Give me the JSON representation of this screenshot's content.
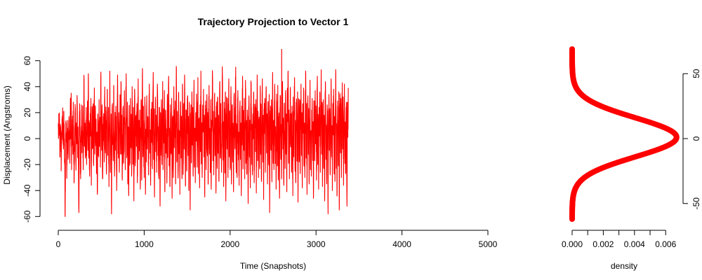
{
  "chart_data": [
    {
      "type": "line",
      "title": "Trajectory Projection to Vector 1",
      "xlabel": "Time (Snapshots)",
      "ylabel": "Displacement (Angstroms)",
      "xlim": [
        0,
        5000
      ],
      "ylim": [
        -62,
        69
      ],
      "x_ticks": [
        0,
        1000,
        2000,
        3000,
        4000,
        5000
      ],
      "y_ticks": [
        -60,
        -40,
        -20,
        0,
        20,
        40,
        60
      ],
      "color": "#ff0000",
      "grid": false,
      "series": [
        {
          "x_start": 0,
          "x_step": 5,
          "values": [
            9,
            2,
            15,
            3,
            -14,
            11,
            -2,
            -18,
            6,
            3,
            18,
            5,
            -8,
            21,
            -6,
            -20,
            -60,
            4,
            12,
            -3,
            -22,
            14,
            8,
            -16,
            0,
            17,
            2,
            -19,
            23,
            10,
            35,
            -24,
            1,
            13,
            -10,
            28,
            -8,
            -33,
            -2,
            21,
            6,
            -18,
            12,
            -4,
            30,
            -12,
            9,
            -22,
            -57,
            14,
            19,
            -3,
            -31,
            8,
            26,
            -11,
            2,
            17,
            -24,
            4,
            46,
            -6,
            12,
            -15,
            1,
            24,
            -20,
            3,
            29,
            -9,
            50,
            -15,
            7,
            -29,
            11,
            2,
            31,
            -36,
            -1,
            18,
            -7,
            25,
            -18,
            4,
            39,
            -12,
            22,
            -2,
            15,
            -27,
            5,
            -43,
            19,
            2,
            -14,
            30,
            -6,
            11,
            -22,
            48,
            13,
            -9,
            26,
            -31,
            -4,
            17,
            2,
            -18,
            33,
            6,
            -11,
            21,
            -25,
            8,
            38,
            -13,
            -2,
            24,
            -37,
            10,
            52,
            -20,
            3,
            19,
            -58,
            14,
            27,
            -4,
            -17,
            41,
            2,
            -29,
            15,
            -9,
            25,
            -1,
            -40,
            12,
            49,
            7,
            -15,
            20,
            -26,
            6,
            31,
            -12,
            44,
            -8,
            18,
            -32,
            3,
            25,
            -19,
            11,
            37,
            -5,
            -24,
            16,
            50,
            2,
            -13,
            28,
            -35,
            9,
            -44,
            22,
            4,
            -18,
            31,
            -7,
            13,
            -27,
            40,
            1,
            -15,
            24,
            -48,
            10,
            35,
            -21,
            6,
            18,
            -6,
            27,
            -34,
            3,
            46,
            -16,
            14,
            -9,
            22,
            -39,
            8,
            30,
            -25,
            2,
            54,
            -14,
            19,
            -5,
            -30,
            12,
            26,
            -43,
            7,
            -18,
            33,
            -8,
            17,
            1,
            -28,
            21,
            42,
            -11,
            5,
            -36,
            15,
            -3,
            28,
            -20,
            10,
            51,
            -16,
            23,
            -45,
            4,
            32,
            -9,
            18,
            -26,
            9,
            39,
            -13,
            2,
            -31,
            24,
            13,
            -52,
            20,
            -6,
            30,
            -17,
            7,
            44,
            -24,
            15,
            -2,
            37,
            -41,
            11,
            22,
            -10,
            3,
            -29,
            34,
            -14,
            19,
            48,
            -21,
            8,
            -37,
            26,
            5,
            -12,
            31,
            -46,
            16,
            2,
            -23,
            40,
            -7,
            14,
            29,
            -33,
            10,
            53,
            -18,
            21,
            -4,
            -27,
            35,
            -11,
            6,
            -43,
            18,
            25,
            -15,
            12,
            -31,
            42,
            3,
            -20,
            27,
            -8,
            49,
            15,
            -36,
            9,
            22,
            -25,
            4,
            33,
            -13,
            17,
            -40,
            28,
            7,
            -55,
            19,
            11,
            -17,
            36,
            -5,
            24,
            -29,
            13,
            45,
            -22,
            8,
            -34,
            20,
            -2,
            31,
            -16,
            10,
            47,
            -27,
            15,
            3,
            -38,
            26,
            -10,
            52,
            -19,
            12,
            -30,
            22,
            5,
            38,
            -14,
            18,
            -45,
            9,
            29,
            -24,
            6,
            34,
            -8,
            17,
            -35,
            23,
            41,
            -12,
            2,
            -20,
            30,
            -39,
            14,
            10,
            49,
            -17,
            21,
            -28,
            7,
            35,
            -6,
            16,
            -42,
            25,
            12,
            -23,
            32,
            -9,
            18,
            -33,
            4,
            44,
            -15,
            27,
            -5,
            -26,
            20,
            50,
            -11,
            13,
            -37,
            28,
            6,
            -19,
            36,
            -48,
            15,
            22,
            -8,
            31,
            -30,
            9,
            46,
            -14,
            19,
            -24,
            3,
            40,
            -35,
            11,
            26,
            -18,
            8,
            -41,
            33,
            14,
            -7,
            24,
            55,
            -21,
            10,
            -29,
            18,
            37,
            -12,
            5,
            -36,
            21,
            29,
            -16,
            12,
            -44,
            25,
            2,
            48,
            -23,
            16,
            -9,
            31,
            -31,
            7,
            39,
            -19,
            14,
            -27,
            22,
            9,
            -50,
            17,
            33,
            -13,
            6,
            -38,
            27,
            43,
            -20,
            11,
            -25,
            19,
            5,
            35,
            -34,
            13,
            24,
            -10,
            30,
            -42,
            8,
            49,
            -17,
            21,
            -30,
            15,
            2,
            -22,
            38,
            -7,
            26,
            -33,
            10,
            46,
            -15,
            18,
            -47,
            23,
            4,
            31,
            -26,
            12,
            40,
            -11,
            19,
            -35,
            28,
            7,
            -20,
            34,
            -57,
            16,
            25,
            -9,
            30,
            -29,
            9,
            51,
            -18,
            14,
            -24,
            21,
            37,
            -13,
            3,
            -39,
            26,
            12,
            -21,
            41,
            -32,
            17,
            8,
            -46,
            24,
            33,
            -16,
            11,
            -28,
            20,
            44,
            -8,
            15,
            -36,
            27,
            6,
            -23,
            35,
            -12,
            19,
            -41,
            29,
            13,
            52,
            -19,
            22,
            -31,
            10,
            38,
            -5,
            17,
            -26,
            25,
            2,
            -44,
            32,
            -14,
            21,
            47,
            -22,
            9,
            -34,
            28,
            16,
            -10,
            36,
            -49,
            14,
            24,
            -18,
            30,
            -27,
            8,
            42,
            -13,
            20,
            -38,
            26,
            5,
            39,
            -21,
            12,
            -30,
            18,
            50,
            -15,
            27,
            -43,
            11,
            33,
            -7,
            23,
            -35,
            15,
            45,
            -24,
            6,
            -29,
            22,
            31,
            -11,
            13,
            -46,
            29,
            19,
            -17,
            37,
            -4,
            25,
            -32,
            10,
            48,
            -20,
            16,
            -39,
            24,
            2,
            35,
            -26,
            14,
            53,
            -12,
            28,
            -37,
            9,
            30,
            -23,
            18,
            -48,
            21,
            41,
            -16,
            7,
            -31,
            26,
            12,
            -58,
            19,
            34,
            -9,
            23,
            -28,
            15,
            46,
            -14,
            10,
            -40,
            27,
            3,
            38,
            -25,
            17,
            -33,
            22,
            49,
            -18,
            8,
            -44,
            29,
            14,
            -21,
            36,
            -55,
            20,
            25,
            -11,
            31,
            -30,
            6,
            43,
            -8,
            32,
            -36,
            13,
            42,
            -19,
            11,
            -27,
            24,
            17,
            -52,
            28,
            1,
            39
          ]
        }
      ]
    },
    {
      "type": "scatter",
      "xlabel": "density",
      "ylabel": "",
      "xlim": [
        0,
        0.0068
      ],
      "ylim": [
        -62,
        69
      ],
      "x_ticks": [
        0.0,
        0.002,
        0.004,
        0.006
      ],
      "x_tick_labels": [
        "0.000",
        "0.002",
        "0.004",
        "0.006"
      ],
      "y_ticks": [
        -50,
        0,
        50
      ],
      "y_axis_side": "right",
      "color": "#ff0000",
      "grid": false,
      "density_model": {
        "peak_density": 0.0067,
        "mean": 1,
        "sd": 15,
        "y_range": [
          -62,
          69
        ]
      }
    }
  ]
}
